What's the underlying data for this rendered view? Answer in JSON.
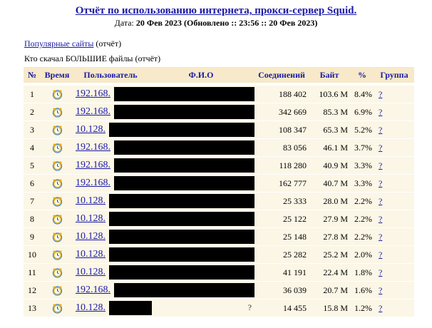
{
  "header": {
    "title": "Отчёт по использованию интернета, прокси-сервер Squid.",
    "date_label": "Дата:",
    "date_value": "20 Фев 2023 (Обновлено :: 23:56 :: 20 Фев 2023)"
  },
  "links": {
    "popular_sites": "Популярные сайты",
    "popular_suffix": " (отчёт)",
    "big_files_text": "Кто скачал БОЛЬШИЕ файлы (отчёт)"
  },
  "table": {
    "columns": [
      "№",
      "Время",
      "Пользователь",
      "Ф.И.О",
      "Соединений",
      "Байт",
      "%",
      "Группа"
    ],
    "rows": [
      {
        "n": "1",
        "user": "192.168.",
        "fio": "",
        "conn": "188 402",
        "bytes": "103.6 M",
        "pct": "8.4%",
        "grp": "?",
        "redact_w": 205
      },
      {
        "n": "2",
        "user": "192.168.",
        "fio": "",
        "conn": "342 669",
        "bytes": "85.3 M",
        "pct": "6.9%",
        "grp": "?",
        "redact_w": 205
      },
      {
        "n": "3",
        "user": "10.128.",
        "fio": "",
        "conn": "108 347",
        "bytes": "65.3 M",
        "pct": "5.2%",
        "grp": "?",
        "redact_w": 210
      },
      {
        "n": "4",
        "user": "192.168.",
        "fio": "",
        "conn": "83 056",
        "bytes": "46.1 M",
        "pct": "3.7%",
        "grp": "?",
        "redact_w": 205
      },
      {
        "n": "5",
        "user": "192.168.",
        "fio": "",
        "conn": "118 280",
        "bytes": "40.9 M",
        "pct": "3.3%",
        "grp": "?",
        "redact_w": 205
      },
      {
        "n": "6",
        "user": "192.168.",
        "fio": "",
        "conn": "162 777",
        "bytes": "40.7 M",
        "pct": "3.3%",
        "grp": "?",
        "redact_w": 205
      },
      {
        "n": "7",
        "user": "10.128.",
        "fio": "",
        "conn": "25 333",
        "bytes": "28.0 M",
        "pct": "2.2%",
        "grp": "?",
        "redact_w": 210
      },
      {
        "n": "8",
        "user": "10.128.",
        "fio": "",
        "conn": "25 122",
        "bytes": "27.9 M",
        "pct": "2.2%",
        "grp": "?",
        "redact_w": 210
      },
      {
        "n": "9",
        "user": "10.128.",
        "fio": "",
        "conn": "25 148",
        "bytes": "27.8 M",
        "pct": "2.2%",
        "grp": "?",
        "redact_w": 210
      },
      {
        "n": "10",
        "user": "10.128.",
        "fio": "",
        "conn": "25 282",
        "bytes": "25.2 M",
        "pct": "2.0%",
        "grp": "?",
        "redact_w": 210
      },
      {
        "n": "11",
        "user": "10.128.",
        "fio": "",
        "conn": "41 191",
        "bytes": "22.4 M",
        "pct": "1.8%",
        "grp": "?",
        "redact_w": 210
      },
      {
        "n": "12",
        "user": "192.168.",
        "fio": "",
        "conn": "36 039",
        "bytes": "20.7 M",
        "pct": "1.6%",
        "grp": "?",
        "redact_w": 205
      },
      {
        "n": "13",
        "user": "10.128.",
        "fio": "?",
        "conn": "14 455",
        "bytes": "15.8 M",
        "pct": "1.2%",
        "grp": "?",
        "redact_w": 60
      }
    ]
  },
  "icons": {
    "time": "alarm-clock-icon"
  },
  "colors": {
    "link": "#1a1aa6",
    "header_bg": "#f7e9c9",
    "row_bg": "#fbf6e6",
    "redaction": "#000000"
  }
}
